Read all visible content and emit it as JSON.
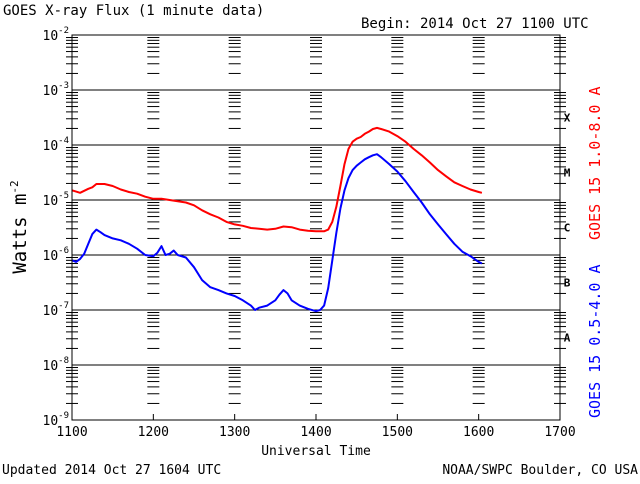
{
  "chart_data": {
    "type": "line",
    "title": "GOES X-ray Flux (1 minute data)",
    "begin_label": "Begin: 2014 Oct 27 1100 UTC",
    "xlabel": "Universal Time",
    "ylabel": "Watts m",
    "ylabel_superscript": "-2",
    "xlim": [
      1100,
      1700
    ],
    "xticks": [
      "1100",
      "1200",
      "1300",
      "1400",
      "1500",
      "1600",
      "1700"
    ],
    "y_scale": "log",
    "ylim": [
      1e-09,
      0.01
    ],
    "yticks": [
      {
        "base": "10",
        "exp": "-9"
      },
      {
        "base": "10",
        "exp": "-8"
      },
      {
        "base": "10",
        "exp": "-7"
      },
      {
        "base": "10",
        "exp": "-6"
      },
      {
        "base": "10",
        "exp": "-5"
      },
      {
        "base": "10",
        "exp": "-4"
      },
      {
        "base": "10",
        "exp": "-3"
      },
      {
        "base": "10",
        "exp": "-2"
      }
    ],
    "flare_classes": [
      {
        "label": "A",
        "exp": -8
      },
      {
        "label": "B",
        "exp": -7
      },
      {
        "label": "C",
        "exp": -6
      },
      {
        "label": "M",
        "exp": -5
      },
      {
        "label": "X",
        "exp": -4
      }
    ],
    "series": [
      {
        "name": "GOES 15 1.0-8.0 A",
        "color": "#ff0000",
        "points": [
          [
            1100,
            1.5e-05
          ],
          [
            1110,
            1.35e-05
          ],
          [
            1120,
            1.6e-05
          ],
          [
            1125,
            1.7e-05
          ],
          [
            1130,
            1.95e-05
          ],
          [
            1140,
            1.95e-05
          ],
          [
            1150,
            1.8e-05
          ],
          [
            1160,
            1.55e-05
          ],
          [
            1170,
            1.4e-05
          ],
          [
            1180,
            1.3e-05
          ],
          [
            1190,
            1.15e-05
          ],
          [
            1200,
            1.05e-05
          ],
          [
            1210,
            1.05e-05
          ],
          [
            1220,
            1e-05
          ],
          [
            1230,
            9.5e-06
          ],
          [
            1240,
            9e-06
          ],
          [
            1250,
            8e-06
          ],
          [
            1260,
            6.5e-06
          ],
          [
            1270,
            5.5e-06
          ],
          [
            1280,
            4.8e-06
          ],
          [
            1290,
            4e-06
          ],
          [
            1300,
            3.6e-06
          ],
          [
            1310,
            3.4e-06
          ],
          [
            1320,
            3.1e-06
          ],
          [
            1330,
            3e-06
          ],
          [
            1340,
            2.9e-06
          ],
          [
            1350,
            3e-06
          ],
          [
            1360,
            3.3e-06
          ],
          [
            1370,
            3.2e-06
          ],
          [
            1380,
            2.9e-06
          ],
          [
            1390,
            2.75e-06
          ],
          [
            1400,
            2.7e-06
          ],
          [
            1410,
            2.7e-06
          ],
          [
            1415,
            2.9e-06
          ],
          [
            1420,
            4e-06
          ],
          [
            1425,
            7.5e-06
          ],
          [
            1430,
            1.8e-05
          ],
          [
            1435,
            4.5e-05
          ],
          [
            1440,
            8.5e-05
          ],
          [
            1445,
            0.000115
          ],
          [
            1450,
            0.00013
          ],
          [
            1455,
            0.00014
          ],
          [
            1460,
            0.00016
          ],
          [
            1465,
            0.000175
          ],
          [
            1470,
            0.000195
          ],
          [
            1475,
            0.000205
          ],
          [
            1480,
            0.000195
          ],
          [
            1490,
            0.000175
          ],
          [
            1500,
            0.000145
          ],
          [
            1510,
            0.000115
          ],
          [
            1520,
            8.5e-05
          ],
          [
            1530,
            6.5e-05
          ],
          [
            1540,
            4.8e-05
          ],
          [
            1550,
            3.5e-05
          ],
          [
            1560,
            2.7e-05
          ],
          [
            1570,
            2.1e-05
          ],
          [
            1580,
            1.8e-05
          ],
          [
            1590,
            1.55e-05
          ],
          [
            1600,
            1.4e-05
          ],
          [
            1604,
            1.35e-05
          ]
        ]
      },
      {
        "name": "GOES 15 0.5-4.0 A",
        "color": "#0000ff",
        "points": [
          [
            1100,
            8e-07
          ],
          [
            1105,
            7.5e-07
          ],
          [
            1110,
            8.5e-07
          ],
          [
            1115,
            1.05e-06
          ],
          [
            1120,
            1.6e-06
          ],
          [
            1125,
            2.4e-06
          ],
          [
            1130,
            2.9e-06
          ],
          [
            1135,
            2.6e-06
          ],
          [
            1140,
            2.3e-06
          ],
          [
            1150,
            2e-06
          ],
          [
            1160,
            1.85e-06
          ],
          [
            1170,
            1.6e-06
          ],
          [
            1180,
            1.3e-06
          ],
          [
            1190,
            1e-06
          ],
          [
            1200,
            9.5e-07
          ],
          [
            1205,
            1.1e-06
          ],
          [
            1210,
            1.45e-06
          ],
          [
            1215,
            1e-06
          ],
          [
            1220,
            1.05e-06
          ],
          [
            1225,
            1.2e-06
          ],
          [
            1230,
            1e-06
          ],
          [
            1240,
            9e-07
          ],
          [
            1250,
            6e-07
          ],
          [
            1260,
            3.5e-07
          ],
          [
            1270,
            2.6e-07
          ],
          [
            1280,
            2.3e-07
          ],
          [
            1290,
            2e-07
          ],
          [
            1300,
            1.8e-07
          ],
          [
            1310,
            1.5e-07
          ],
          [
            1320,
            1.2e-07
          ],
          [
            1325,
            1e-07
          ],
          [
            1330,
            1.1e-07
          ],
          [
            1340,
            1.2e-07
          ],
          [
            1350,
            1.5e-07
          ],
          [
            1355,
            1.9e-07
          ],
          [
            1360,
            2.3e-07
          ],
          [
            1365,
            2e-07
          ],
          [
            1370,
            1.5e-07
          ],
          [
            1380,
            1.2e-07
          ],
          [
            1390,
            1.05e-07
          ],
          [
            1400,
            9.5e-08
          ],
          [
            1405,
            1e-07
          ],
          [
            1410,
            1.2e-07
          ],
          [
            1415,
            2.5e-07
          ],
          [
            1420,
            8e-07
          ],
          [
            1425,
            2.5e-06
          ],
          [
            1430,
            7e-06
          ],
          [
            1435,
            1.5e-05
          ],
          [
            1440,
            2.5e-05
          ],
          [
            1445,
            3.5e-05
          ],
          [
            1450,
            4.2e-05
          ],
          [
            1455,
            4.8e-05
          ],
          [
            1460,
            5.5e-05
          ],
          [
            1465,
            6e-05
          ],
          [
            1470,
            6.5e-05
          ],
          [
            1475,
            6.8e-05
          ],
          [
            1480,
            6e-05
          ],
          [
            1490,
            4.5e-05
          ],
          [
            1500,
            3.3e-05
          ],
          [
            1510,
            2.2e-05
          ],
          [
            1520,
            1.4e-05
          ],
          [
            1530,
            9e-06
          ],
          [
            1540,
            5.5e-06
          ],
          [
            1550,
            3.6e-06
          ],
          [
            1560,
            2.4e-06
          ],
          [
            1570,
            1.6e-06
          ],
          [
            1580,
            1.15e-06
          ],
          [
            1590,
            9.5e-07
          ],
          [
            1600,
            7.5e-07
          ],
          [
            1604,
            7e-07
          ]
        ]
      }
    ]
  },
  "footer": {
    "updated": "Updated 2014 Oct 27 1604 UTC",
    "credit": "NOAA/SWPC Boulder, CO USA"
  }
}
